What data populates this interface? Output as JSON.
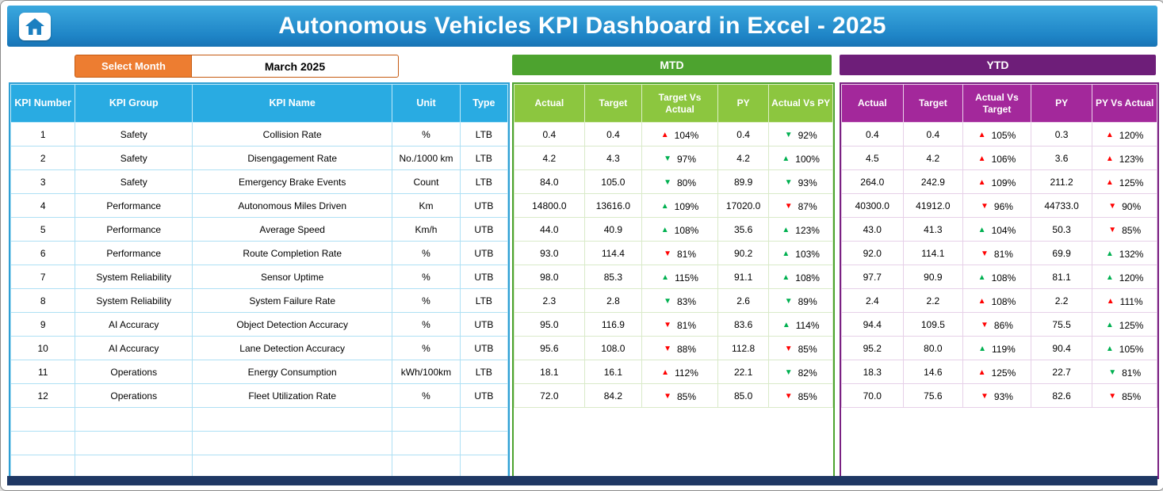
{
  "app": {
    "title": "Autonomous Vehicles KPI Dashboard in Excel - 2025"
  },
  "controls": {
    "select_month_label": "Select Month",
    "selected_month": "March 2025"
  },
  "kpi_table": {
    "headers": [
      "KPI Number",
      "KPI Group",
      "KPI Name",
      "Unit",
      "Type"
    ]
  },
  "mtd": {
    "title": "MTD",
    "headers": [
      "Actual",
      "Target",
      "Target Vs Actual",
      "PY",
      "Actual Vs PY"
    ]
  },
  "ytd": {
    "title": "YTD",
    "headers": [
      "Actual",
      "Target",
      "Actual Vs Target",
      "PY",
      "PY Vs Actual"
    ]
  },
  "icons": {
    "arrow_up": "▲",
    "arrow_down": "▼",
    "home": "home-icon"
  },
  "colors": {
    "banner_blue": "#1E84C6",
    "accent_orange": "#ED7D31",
    "kpi_header_blue": "#29ABE2",
    "mtd_bar_green": "#4DA32F",
    "mtd_header_green": "#8CC63F",
    "ytd_bar_purple": "#6E1E79",
    "ytd_header_magenta": "#A3289B",
    "trend_red": "#FF0000",
    "trend_green": "#00B050",
    "footer_navy": "#1F3864"
  },
  "empty_row_count": 3,
  "rows": [
    {
      "num": "1",
      "group": "Safety",
      "name": "Collision Rate",
      "unit": "%",
      "type": "LTB",
      "mtd": {
        "actual": "0.4",
        "target": "0.4",
        "target_vs_actual": {
          "dir": "up",
          "color": "red",
          "pct": "104%"
        },
        "py": "0.4",
        "actual_vs_py": {
          "dir": "down",
          "color": "green",
          "pct": "92%"
        }
      },
      "ytd": {
        "actual": "0.4",
        "target": "0.4",
        "actual_vs_target": {
          "dir": "up",
          "color": "red",
          "pct": "105%"
        },
        "py": "0.3",
        "py_vs_actual": {
          "dir": "up",
          "color": "red",
          "pct": "120%"
        }
      }
    },
    {
      "num": "2",
      "group": "Safety",
      "name": "Disengagement Rate",
      "unit": "No./1000 km",
      "type": "LTB",
      "mtd": {
        "actual": "4.2",
        "target": "4.3",
        "target_vs_actual": {
          "dir": "down",
          "color": "green",
          "pct": "97%"
        },
        "py": "4.2",
        "actual_vs_py": {
          "dir": "up",
          "color": "green",
          "pct": "100%"
        }
      },
      "ytd": {
        "actual": "4.5",
        "target": "4.2",
        "actual_vs_target": {
          "dir": "up",
          "color": "red",
          "pct": "106%"
        },
        "py": "3.6",
        "py_vs_actual": {
          "dir": "up",
          "color": "red",
          "pct": "123%"
        }
      }
    },
    {
      "num": "3",
      "group": "Safety",
      "name": "Emergency Brake Events",
      "unit": "Count",
      "type": "LTB",
      "mtd": {
        "actual": "84.0",
        "target": "105.0",
        "target_vs_actual": {
          "dir": "down",
          "color": "green",
          "pct": "80%"
        },
        "py": "89.9",
        "actual_vs_py": {
          "dir": "down",
          "color": "green",
          "pct": "93%"
        }
      },
      "ytd": {
        "actual": "264.0",
        "target": "242.9",
        "actual_vs_target": {
          "dir": "up",
          "color": "red",
          "pct": "109%"
        },
        "py": "211.2",
        "py_vs_actual": {
          "dir": "up",
          "color": "red",
          "pct": "125%"
        }
      }
    },
    {
      "num": "4",
      "group": "Performance",
      "name": "Autonomous Miles Driven",
      "unit": "Km",
      "type": "UTB",
      "mtd": {
        "actual": "14800.0",
        "target": "13616.0",
        "target_vs_actual": {
          "dir": "up",
          "color": "green",
          "pct": "109%"
        },
        "py": "17020.0",
        "actual_vs_py": {
          "dir": "down",
          "color": "red",
          "pct": "87%"
        }
      },
      "ytd": {
        "actual": "40300.0",
        "target": "41912.0",
        "actual_vs_target": {
          "dir": "down",
          "color": "red",
          "pct": "96%"
        },
        "py": "44733.0",
        "py_vs_actual": {
          "dir": "down",
          "color": "red",
          "pct": "90%"
        }
      }
    },
    {
      "num": "5",
      "group": "Performance",
      "name": "Average Speed",
      "unit": "Km/h",
      "type": "UTB",
      "mtd": {
        "actual": "44.0",
        "target": "40.9",
        "target_vs_actual": {
          "dir": "up",
          "color": "green",
          "pct": "108%"
        },
        "py": "35.6",
        "actual_vs_py": {
          "dir": "up",
          "color": "green",
          "pct": "123%"
        }
      },
      "ytd": {
        "actual": "43.0",
        "target": "41.3",
        "actual_vs_target": {
          "dir": "up",
          "color": "green",
          "pct": "104%"
        },
        "py": "50.3",
        "py_vs_actual": {
          "dir": "down",
          "color": "red",
          "pct": "85%"
        }
      }
    },
    {
      "num": "6",
      "group": "Performance",
      "name": "Route Completion Rate",
      "unit": "%",
      "type": "UTB",
      "mtd": {
        "actual": "93.0",
        "target": "114.4",
        "target_vs_actual": {
          "dir": "down",
          "color": "red",
          "pct": "81%"
        },
        "py": "90.2",
        "actual_vs_py": {
          "dir": "up",
          "color": "green",
          "pct": "103%"
        }
      },
      "ytd": {
        "actual": "92.0",
        "target": "114.1",
        "actual_vs_target": {
          "dir": "down",
          "color": "red",
          "pct": "81%"
        },
        "py": "69.9",
        "py_vs_actual": {
          "dir": "up",
          "color": "green",
          "pct": "132%"
        }
      }
    },
    {
      "num": "7",
      "group": "System Reliability",
      "name": "Sensor Uptime",
      "unit": "%",
      "type": "UTB",
      "mtd": {
        "actual": "98.0",
        "target": "85.3",
        "target_vs_actual": {
          "dir": "up",
          "color": "green",
          "pct": "115%"
        },
        "py": "91.1",
        "actual_vs_py": {
          "dir": "up",
          "color": "green",
          "pct": "108%"
        }
      },
      "ytd": {
        "actual": "97.7",
        "target": "90.9",
        "actual_vs_target": {
          "dir": "up",
          "color": "green",
          "pct": "108%"
        },
        "py": "81.1",
        "py_vs_actual": {
          "dir": "up",
          "color": "green",
          "pct": "120%"
        }
      }
    },
    {
      "num": "8",
      "group": "System Reliability",
      "name": "System Failure Rate",
      "unit": "%",
      "type": "LTB",
      "mtd": {
        "actual": "2.3",
        "target": "2.8",
        "target_vs_actual": {
          "dir": "down",
          "color": "green",
          "pct": "83%"
        },
        "py": "2.6",
        "actual_vs_py": {
          "dir": "down",
          "color": "green",
          "pct": "89%"
        }
      },
      "ytd": {
        "actual": "2.4",
        "target": "2.2",
        "actual_vs_target": {
          "dir": "up",
          "color": "red",
          "pct": "108%"
        },
        "py": "2.2",
        "py_vs_actual": {
          "dir": "up",
          "color": "red",
          "pct": "111%"
        }
      }
    },
    {
      "num": "9",
      "group": "AI Accuracy",
      "name": "Object Detection Accuracy",
      "unit": "%",
      "type": "UTB",
      "mtd": {
        "actual": "95.0",
        "target": "116.9",
        "target_vs_actual": {
          "dir": "down",
          "color": "red",
          "pct": "81%"
        },
        "py": "83.6",
        "actual_vs_py": {
          "dir": "up",
          "color": "green",
          "pct": "114%"
        }
      },
      "ytd": {
        "actual": "94.4",
        "target": "109.5",
        "actual_vs_target": {
          "dir": "down",
          "color": "red",
          "pct": "86%"
        },
        "py": "75.5",
        "py_vs_actual": {
          "dir": "up",
          "color": "green",
          "pct": "125%"
        }
      }
    },
    {
      "num": "10",
      "group": "AI Accuracy",
      "name": "Lane Detection Accuracy",
      "unit": "%",
      "type": "UTB",
      "mtd": {
        "actual": "95.6",
        "target": "108.0",
        "target_vs_actual": {
          "dir": "down",
          "color": "red",
          "pct": "88%"
        },
        "py": "112.8",
        "actual_vs_py": {
          "dir": "down",
          "color": "red",
          "pct": "85%"
        }
      },
      "ytd": {
        "actual": "95.2",
        "target": "80.0",
        "actual_vs_target": {
          "dir": "up",
          "color": "green",
          "pct": "119%"
        },
        "py": "90.4",
        "py_vs_actual": {
          "dir": "up",
          "color": "green",
          "pct": "105%"
        }
      }
    },
    {
      "num": "11",
      "group": "Operations",
      "name": "Energy Consumption",
      "unit": "kWh/100km",
      "type": "LTB",
      "mtd": {
        "actual": "18.1",
        "target": "16.1",
        "target_vs_actual": {
          "dir": "up",
          "color": "red",
          "pct": "112%"
        },
        "py": "22.1",
        "actual_vs_py": {
          "dir": "down",
          "color": "green",
          "pct": "82%"
        }
      },
      "ytd": {
        "actual": "18.3",
        "target": "14.6",
        "actual_vs_target": {
          "dir": "up",
          "color": "red",
          "pct": "125%"
        },
        "py": "22.7",
        "py_vs_actual": {
          "dir": "down",
          "color": "green",
          "pct": "81%"
        }
      }
    },
    {
      "num": "12",
      "group": "Operations",
      "name": "Fleet Utilization Rate",
      "unit": "%",
      "type": "UTB",
      "mtd": {
        "actual": "72.0",
        "target": "84.2",
        "target_vs_actual": {
          "dir": "down",
          "color": "red",
          "pct": "85%"
        },
        "py": "85.0",
        "actual_vs_py": {
          "dir": "down",
          "color": "red",
          "pct": "85%"
        }
      },
      "ytd": {
        "actual": "70.0",
        "target": "75.6",
        "actual_vs_target": {
          "dir": "down",
          "color": "red",
          "pct": "93%"
        },
        "py": "82.6",
        "py_vs_actual": {
          "dir": "down",
          "color": "red",
          "pct": "85%"
        }
      }
    }
  ]
}
